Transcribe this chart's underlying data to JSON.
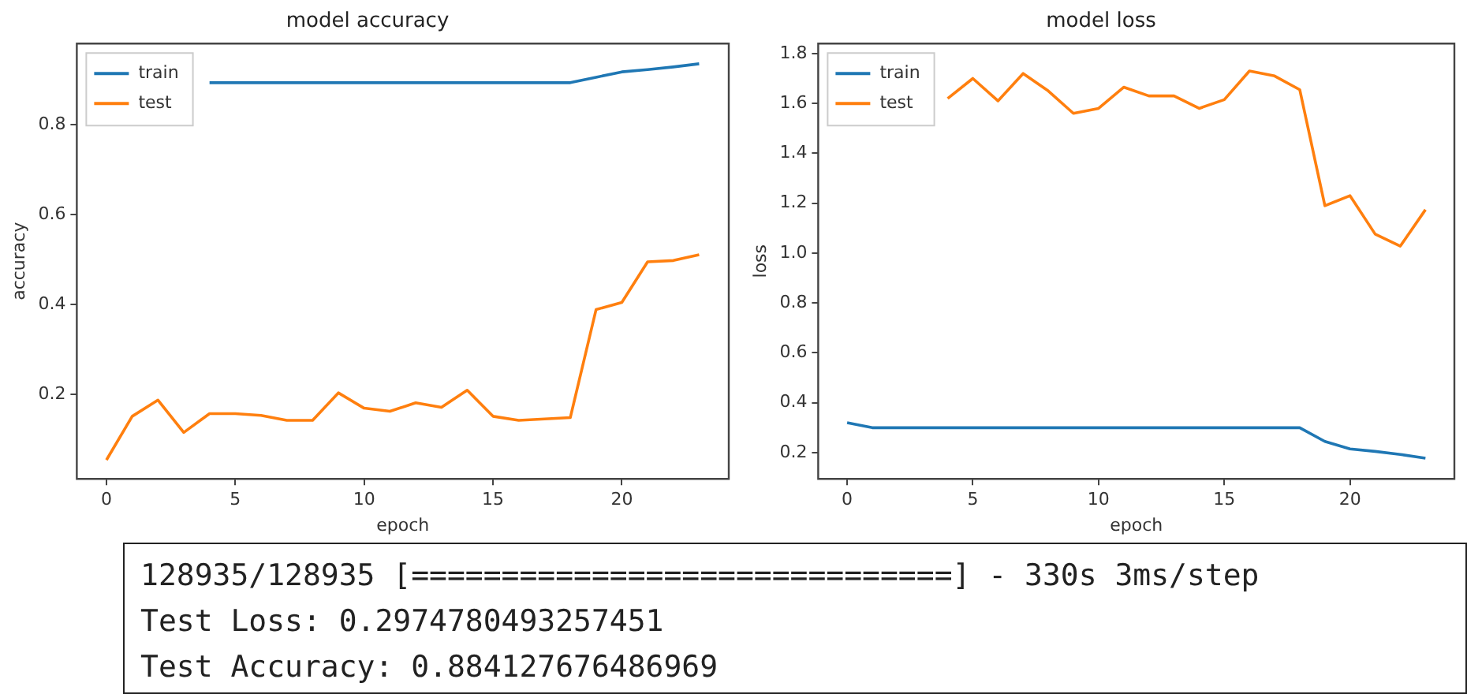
{
  "chart_data": [
    {
      "type": "line",
      "title": "model accuracy",
      "xlabel": "epoch",
      "ylabel": "accuracy",
      "legend": "top left",
      "x": [
        0,
        1,
        2,
        3,
        4,
        5,
        6,
        7,
        8,
        9,
        10,
        11,
        12,
        13,
        14,
        15,
        16,
        17,
        18,
        19,
        20,
        21,
        22,
        23
      ],
      "series": [
        {
          "name": "train",
          "color": "#1f77b4",
          "values": [
            null,
            null,
            null,
            null,
            0.893,
            0.893,
            0.893,
            0.893,
            0.893,
            0.893,
            0.893,
            0.893,
            0.893,
            0.893,
            0.893,
            0.893,
            0.893,
            0.893,
            0.893,
            0.905,
            0.917,
            0.922,
            0.928,
            0.935
          ]
        },
        {
          "name": "test",
          "color": "#ff7f0e",
          "values": [
            0.055,
            0.152,
            0.188,
            0.116,
            0.158,
            0.158,
            0.154,
            0.143,
            0.143,
            0.204,
            0.17,
            0.163,
            0.182,
            0.172,
            0.21,
            0.152,
            0.143,
            0.146,
            0.149,
            0.389,
            0.405,
            0.495,
            0.498,
            0.511
          ]
        }
      ],
      "xlim": [
        -1.15,
        24.15
      ],
      "xticks": [
        0,
        5,
        10,
        15,
        20
      ],
      "ylim": [
        0.013,
        0.98
      ],
      "yticks": [
        0.2,
        0.4,
        0.6,
        0.8
      ]
    },
    {
      "type": "line",
      "title": "model loss",
      "xlabel": "epoch",
      "ylabel": "loss",
      "legend": "top left",
      "x": [
        0,
        1,
        2,
        3,
        4,
        5,
        6,
        7,
        8,
        9,
        10,
        11,
        12,
        13,
        14,
        15,
        16,
        17,
        18,
        19,
        20,
        21,
        22,
        23
      ],
      "series": [
        {
          "name": "train",
          "color": "#1f77b4",
          "values": [
            0.32,
            0.3,
            0.3,
            0.3,
            0.3,
            0.3,
            0.3,
            0.3,
            0.3,
            0.3,
            0.3,
            0.3,
            0.3,
            0.3,
            0.3,
            0.3,
            0.3,
            0.3,
            0.3,
            0.245,
            0.215,
            0.205,
            0.193,
            0.178
          ]
        },
        {
          "name": "test",
          "color": "#ff7f0e",
          "values": [
            null,
            null,
            null,
            null,
            1.62,
            1.7,
            1.61,
            1.72,
            1.65,
            1.56,
            1.58,
            1.665,
            1.63,
            1.63,
            1.58,
            1.615,
            1.73,
            1.71,
            1.655,
            1.19,
            1.23,
            1.076,
            1.028,
            1.174
          ]
        }
      ],
      "xlim": [
        -1.15,
        24.15
      ],
      "xticks": [
        0,
        5,
        10,
        15,
        20
      ],
      "ylim": [
        0.095,
        1.84
      ],
      "yticks": [
        0.2,
        0.4,
        0.6,
        0.8,
        {
          "value": 1,
          "label": "1.0"
        },
        1.2,
        1.4,
        1.6,
        1.8
      ]
    },
    {
      "type": "other",
      "annotations": [
        "128935/128935 [==============================] - 330s 3ms/step",
        "Test Loss: 0.2974780493257451",
        "Test Accuracy: 0.884127676486969"
      ]
    }
  ]
}
